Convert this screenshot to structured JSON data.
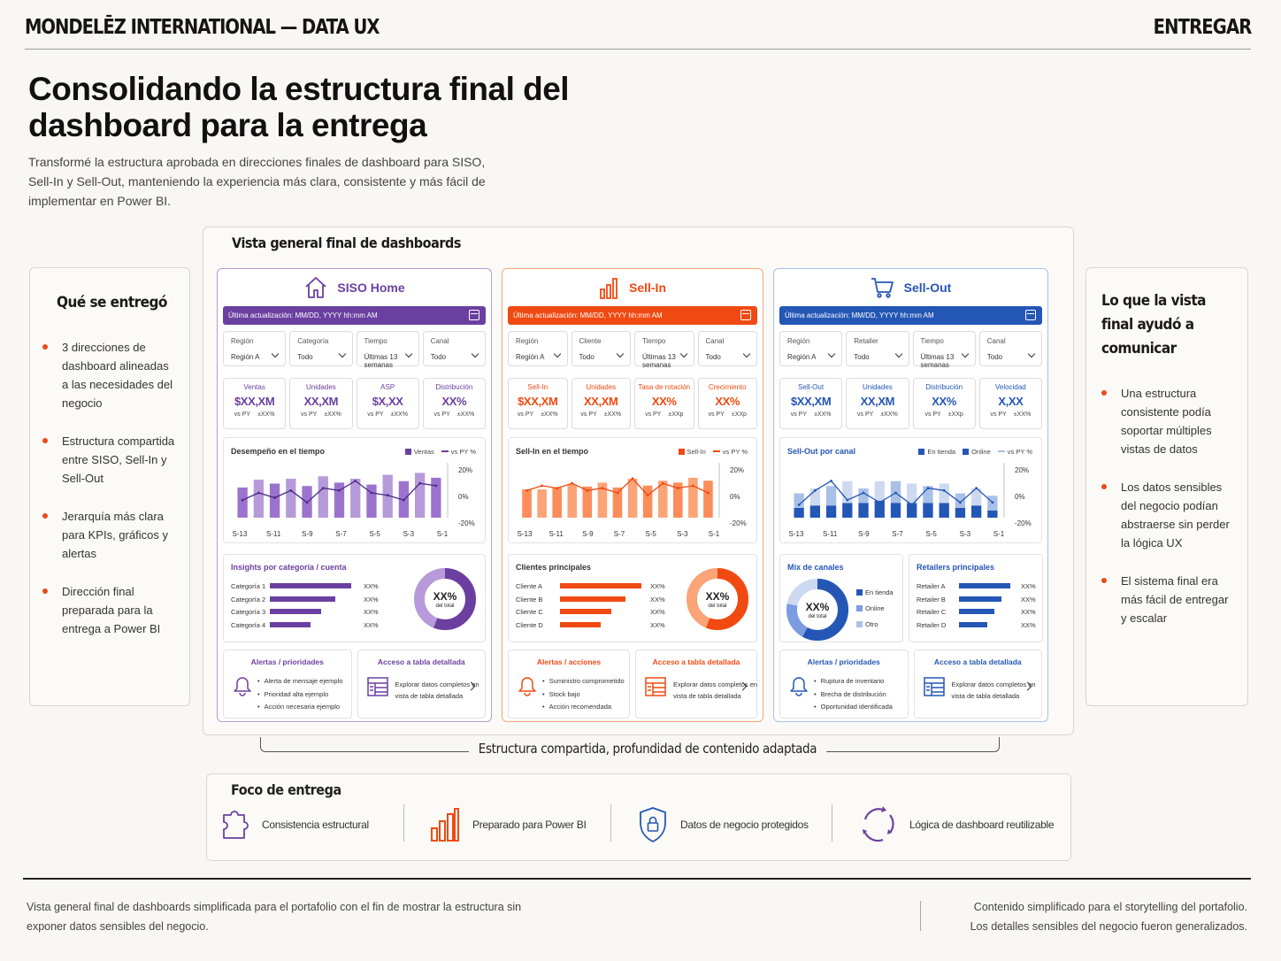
{
  "header": {
    "brand": "MONDELĒZ INTERNATIONAL — DATA UX",
    "stage": "ENTREGAR"
  },
  "hero": {
    "title": "Consolidando la estructura final del dashboard para la entrega",
    "subtitle": "Transformé la estructura aprobada en direcciones finales de dashboard para SISO, Sell-In y Sell-Out, manteniendo la experiencia más clara, consistente y más fácil de implementar en Power BI."
  },
  "delivered": {
    "title": "Qué se entregó",
    "items": [
      "3 direcciones de dashboard alineadas a las necesidades del negocio",
      "Estructura compartida entre SISO, Sell-In y Sell-Out",
      "Jerarquía más clara para KPIs, gráficos y alertas",
      "Dirección final preparada para la entrega a Power BI"
    ]
  },
  "communicated": {
    "title": "Lo que la vista final ayudó a comunicar",
    "items": [
      "Una estructura consistente podía soportar múltiples vistas de datos",
      "Los datos sensibles del negocio podían abstraerse sin perder la lógica UX",
      "El sistema final era más fácil de entregar y escalar"
    ]
  },
  "overview": {
    "title": "Vista general final de dashboards",
    "bracket_label": "Estructura compartida, profundidad de contenido adaptada"
  },
  "panels": [
    {
      "name": "SISO Home",
      "color": "#6b3fa0",
      "light": "#b79ad9",
      "updated": "Última actualización: MM/DD, YYYY hh:mm AM",
      "filters": [
        {
          "label": "Región",
          "value": "Región A"
        },
        {
          "label": "Categoría",
          "value": "Todo"
        },
        {
          "label": "Tiempo",
          "value": "Últimas 13 semanas"
        },
        {
          "label": "Canal",
          "value": "Todo"
        }
      ],
      "kpis": [
        {
          "label": "Ventas",
          "value": "$XX,XM",
          "vs": "vs PY",
          "delta": "±XX%"
        },
        {
          "label": "Unidades",
          "value": "XX,XM",
          "vs": "vs PY",
          "delta": "±XX%"
        },
        {
          "label": "ASP",
          "value": "$X,XX",
          "vs": "vs PY",
          "delta": "±XX%"
        },
        {
          "label": "Distribución",
          "value": "XX%",
          "vs": "vs PY",
          "delta": "±XX%"
        }
      ],
      "chart": {
        "title": "Desempeño en el tiempo",
        "legend_bar": "Ventas",
        "legend_line": "vs PY %"
      },
      "insight": {
        "title": "Insights por categoría / cuenta",
        "rows": [
          {
            "label": "Categoría 1",
            "value": "XX%"
          },
          {
            "label": "Categoría 2",
            "value": "XX%"
          },
          {
            "label": "Categoría 3",
            "value": "XX%"
          },
          {
            "label": "Categoría 4",
            "value": "XX%"
          }
        ],
        "donut_value": "XX%",
        "donut_sub": "del total"
      },
      "alerts": {
        "title": "Alertas / prioridades",
        "items": [
          "Alerta de mensaje ejemplo",
          "Prioridad alta ejemplo",
          "Acción necesaria ejemplo"
        ]
      },
      "detail": {
        "title": "Acceso a tabla detallada",
        "text": "Explorar datos completos en vista de tabla detallada"
      }
    },
    {
      "name": "Sell-In",
      "color": "#f04a12",
      "light": "#fba477",
      "updated": "Última actualización: MM/DD, YYYY hh:mm AM",
      "filters": [
        {
          "label": "Región",
          "value": "Región A"
        },
        {
          "label": "Cliente",
          "value": "Todo"
        },
        {
          "label": "Tiempo",
          "value": "Últimas 13 semanas"
        },
        {
          "label": "Canal",
          "value": "Todo"
        }
      ],
      "kpis": [
        {
          "label": "Sell-In",
          "value": "$XX,XM",
          "vs": "vs PY",
          "delta": "±XX%"
        },
        {
          "label": "Unidades",
          "value": "XX,XM",
          "vs": "vs PY",
          "delta": "±XX%"
        },
        {
          "label": "Tasa de rotación",
          "value": "XX%",
          "vs": "vs PY",
          "delta": "±XXp"
        },
        {
          "label": "Crecimiento",
          "value": "XX%",
          "vs": "vs PY",
          "delta": "±XXp"
        }
      ],
      "chart": {
        "title": "Sell-In en el tiempo",
        "legend_bar": "Sell-In",
        "legend_line": "vs PY %"
      },
      "insight": {
        "title": "Clientes principales",
        "rows": [
          {
            "label": "Cliente A",
            "value": "XX%"
          },
          {
            "label": "Cliente B",
            "value": "XX%"
          },
          {
            "label": "Cliente C",
            "value": "XX%"
          },
          {
            "label": "Cliente D",
            "value": "XX%"
          }
        ],
        "donut_value": "XX%",
        "donut_sub": "del total"
      },
      "alerts": {
        "title": "Alertas / acciones",
        "items": [
          "Suministro comprometido",
          "Stock bajo",
          "Acción recomendada"
        ]
      },
      "detail": {
        "title": "Acceso a tabla detallada",
        "text": "Explorar datos completos en vista de tabla detallada"
      }
    },
    {
      "name": "Sell-Out",
      "color": "#2456b5",
      "light": "#a9c0e8",
      "updated": "Última actualización: MM/DD, YYYY hh:mm AM",
      "filters": [
        {
          "label": "Región",
          "value": "Región A"
        },
        {
          "label": "Retailer",
          "value": "Todo"
        },
        {
          "label": "Tiempo",
          "value": "Últimas 13 semanas"
        },
        {
          "label": "Canal",
          "value": "Todo"
        }
      ],
      "kpis": [
        {
          "label": "Sell-Out",
          "value": "$XX,XM",
          "vs": "vs PY",
          "delta": "±XX%"
        },
        {
          "label": "Unidades",
          "value": "XX,XM",
          "vs": "vs PY",
          "delta": "±XX%"
        },
        {
          "label": "Distribución",
          "value": "XX%",
          "vs": "vs PY",
          "delta": "±XXp"
        },
        {
          "label": "Velocidad",
          "value": "X,XX",
          "vs": "vs PY",
          "delta": "±XX%"
        }
      ],
      "chart": {
        "title": "Sell-Out por canal",
        "legend_bar": "En tienda",
        "legend_bar2": "Online",
        "legend_line": "vs PY %"
      },
      "mix": {
        "title": "Mix de canales",
        "donut_value": "XX%",
        "donut_sub": "del total",
        "legend": [
          "En tienda",
          "Online",
          "Otro"
        ]
      },
      "retailers": {
        "title": "Retailers principales",
        "rows": [
          {
            "label": "Retailer A",
            "value": "XX%"
          },
          {
            "label": "Retailer B",
            "value": "XX%"
          },
          {
            "label": "Retailer C",
            "value": "XX%"
          },
          {
            "label": "Retailer D",
            "value": "XX%"
          }
        ]
      },
      "alerts": {
        "title": "Alertas / prioridades",
        "items": [
          "Ruptura de inventario",
          "Brecha de distribución",
          "Oportunidad identificada"
        ]
      },
      "detail": {
        "title": "Acceso a tabla detallada",
        "text": "Explorar datos completos en vista de tabla detallada"
      }
    }
  ],
  "chart_axis": {
    "x_ticks": [
      "S-13",
      "S-11",
      "S-9",
      "S-7",
      "S-5",
      "S-3",
      "S-1"
    ],
    "y_ticks": [
      "20%",
      "0%",
      "-20%"
    ]
  },
  "chart_data": [
    {
      "type": "bar",
      "name": "SISO Home",
      "x": [
        "S-13",
        "S-12",
        "S-11",
        "S-10",
        "S-9",
        "S-8",
        "S-7",
        "S-6",
        "S-5",
        "S-4",
        "S-3",
        "S-2",
        "S-1"
      ],
      "series": [
        {
          "values": [
            62,
            78,
            70,
            80,
            65,
            85,
            72,
            80,
            68,
            88,
            75,
            92,
            82
          ]
        },
        {
          "values": [
            -6,
            0,
            -4,
            2,
            -8,
            4,
            2,
            10,
            0,
            -2,
            -6,
            8,
            6
          ],
          "axis": "right"
        }
      ]
    },
    {
      "type": "bar",
      "name": "Sell-In",
      "x": [
        "S-13",
        "S-12",
        "S-11",
        "S-10",
        "S-9",
        "S-8",
        "S-7",
        "S-6",
        "S-5",
        "S-4",
        "S-3",
        "S-2",
        "S-1"
      ],
      "series": [
        {
          "values": [
            58,
            58,
            62,
            68,
            64,
            72,
            62,
            80,
            66,
            76,
            72,
            82,
            76
          ]
        },
        {
          "values": [
            2,
            6,
            4,
            8,
            2,
            4,
            0,
            12,
            -2,
            8,
            4,
            6,
            0
          ],
          "axis": "right"
        }
      ]
    },
    {
      "type": "bar",
      "name": "Sell-Out",
      "x": [
        "S-13",
        "S-12",
        "S-11",
        "S-10",
        "S-9",
        "S-8",
        "S-7",
        "S-6",
        "S-5",
        "S-4",
        "S-3",
        "S-2",
        "S-1"
      ],
      "series": [
        {
          "values": [
            30,
            35,
            40,
            45,
            30,
            40,
            45,
            40,
            35,
            40,
            30,
            35,
            30
          ]
        },
        {
          "values": [
            20,
            25,
            25,
            30,
            30,
            35,
            30,
            30,
            30,
            30,
            20,
            25,
            15
          ]
        },
        {
          "values": [
            -10,
            2,
            10,
            -6,
            0,
            -8,
            0,
            -10,
            4,
            2,
            -8,
            4,
            -8
          ],
          "axis": "right"
        }
      ]
    }
  ],
  "focus": {
    "title": "Foco de entrega",
    "items": [
      "Consistencia estructural",
      "Preparado para Power BI",
      "Datos de negocio protegidos",
      "Lógica de dashboard reutilizable"
    ]
  },
  "footer": {
    "left": "Vista general final de dashboards simplificada para el portafolio con el fin de mostrar la estructura sin exponer datos sensibles del negocio.",
    "right": "Contenido simplificado para el storytelling del portafolio. Los detalles sensibles del negocio fueron generalizados."
  }
}
